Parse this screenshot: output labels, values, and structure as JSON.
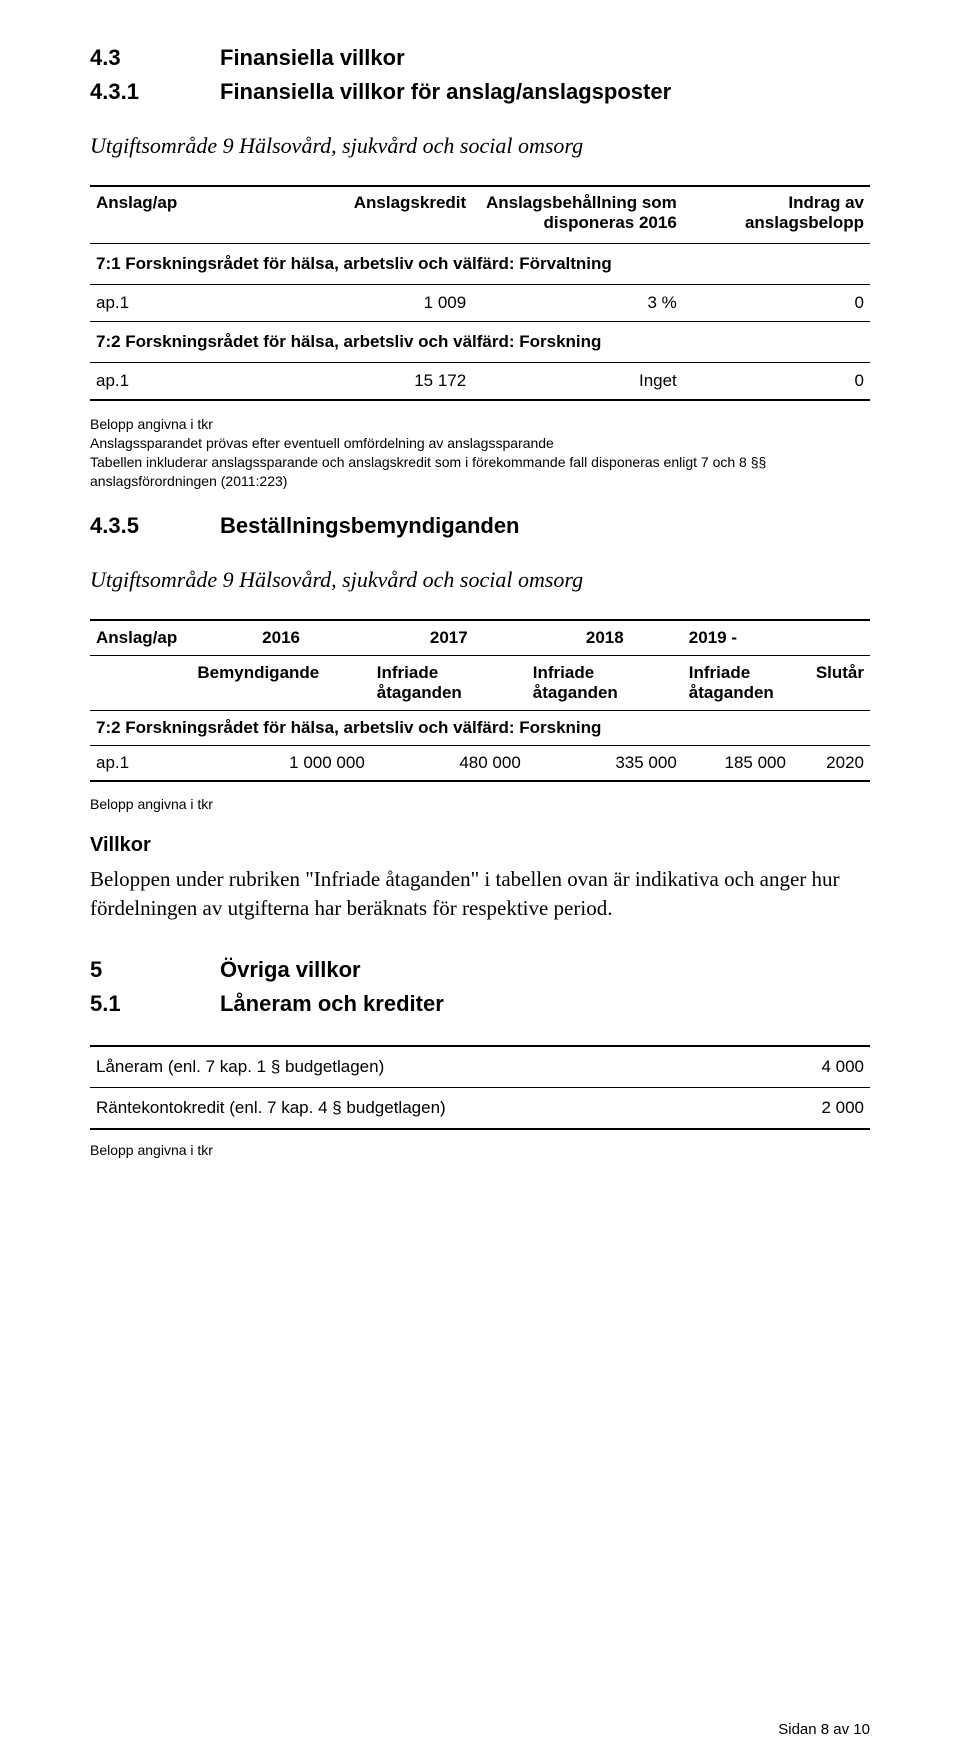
{
  "headings": {
    "h43_num": "4.3",
    "h43_text": "Finansiella villkor",
    "h431_num": "4.3.1",
    "h431_text": "Finansiella villkor för anslag/anslagsposter",
    "h435_num": "4.3.5",
    "h435_text": "Beställningsbemyndiganden",
    "h5_num": "5",
    "h5_text": "Övriga villkor",
    "h51_num": "5.1",
    "h51_text": "Låneram och krediter",
    "sub1": "Utgiftsområde 9 Hälsovård, sjukvård och social omsorg",
    "sub2": "Utgiftsområde 9 Hälsovård, sjukvård och social omsorg"
  },
  "table1": {
    "head_c1": "Anslag/ap",
    "head_c2": "Anslagskredit",
    "head_c3": "Anslagsbehållning som disponeras 2016",
    "head_c4": "Indrag av anslagsbelopp",
    "sec1": "7:1 Forskningsrådet för hälsa, arbetsliv och välfärd: Förvaltning",
    "r1_c1": "ap.1",
    "r1_c2": "1 009",
    "r1_c3": "3 %",
    "r1_c4": "0",
    "sec2": "7:2 Forskningsrådet för hälsa, arbetsliv och välfärd: Forskning",
    "r2_c1": "ap.1",
    "r2_c2": "15 172",
    "r2_c3": "Inget",
    "r2_c4": "0"
  },
  "notes1": {
    "l1": "Belopp angivna i tkr",
    "l2": "Anslagssparandet prövas efter eventuell omfördelning av anslagssparande",
    "l3": "Tabellen inkluderar anslagssparande och anslagskredit som i förekommande fall disponeras enligt 7 och 8 §§ anslagsförordningen (2011:223)"
  },
  "table2": {
    "top_c1": "Anslag/ap",
    "top_c2": "2016",
    "top_c3": "2017",
    "top_c4": "2018",
    "top_c5": "2019 -",
    "sub_c2": "Bemyndigande",
    "sub_c3": "Infriade åtaganden",
    "sub_c4": "Infriade åtaganden",
    "sub_c5": "Infriade åtaganden",
    "sub_c6": "Slutår",
    "sec": "7:2 Forskningsrådet för hälsa, arbetsliv och välfärd: Forskning",
    "r1_c1": "ap.1",
    "r1_c2": "1 000 000",
    "r1_c3": "480 000",
    "r1_c4": "335 000",
    "r1_c5": "185 000",
    "r1_c6": "2020"
  },
  "notes2": {
    "l1": "Belopp angivna i tkr"
  },
  "villkor": {
    "head": "Villkor",
    "body": "Beloppen under rubriken \"Infriade åtaganden\" i tabellen ovan är indikativa och anger hur fördelningen av utgifterna har beräknats för respektive period."
  },
  "table3": {
    "r1_c1": "Låneram (enl. 7 kap. 1 § budgetlagen)",
    "r1_c2": "4 000",
    "r2_c1": "Räntekontokredit (enl. 7 kap. 4 § budgetlagen)",
    "r2_c2": "2 000"
  },
  "notes3": {
    "l1": "Belopp angivna i tkr"
  },
  "footer": {
    "page": "Sidan 8 av 10"
  }
}
